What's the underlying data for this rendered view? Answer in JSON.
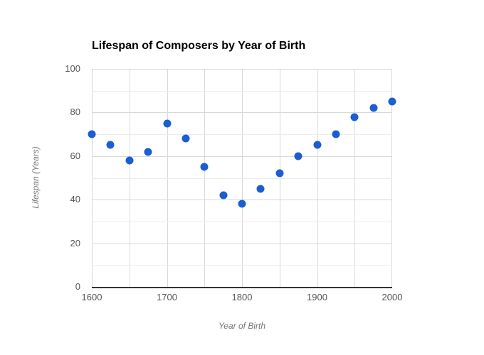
{
  "chart_data": {
    "type": "scatter",
    "title": "Lifespan of Composers by Year of Birth",
    "xlabel": "Year of Birth",
    "ylabel": "Lifespan (Years)",
    "xlim": [
      1600,
      2000
    ],
    "ylim": [
      0,
      100
    ],
    "x_ticks": [
      1600,
      1700,
      1800,
      1900,
      2000
    ],
    "y_ticks": [
      0,
      20,
      40,
      60,
      80,
      100
    ],
    "grid": {
      "x_step": 50,
      "y_minor_step": 10,
      "y_major_step": 20
    },
    "legend": "none",
    "points": [
      {
        "x": 1600,
        "y": 70
      },
      {
        "x": 1625,
        "y": 65
      },
      {
        "x": 1650,
        "y": 58
      },
      {
        "x": 1675,
        "y": 62
      },
      {
        "x": 1700,
        "y": 75
      },
      {
        "x": 1725,
        "y": 68
      },
      {
        "x": 1750,
        "y": 55
      },
      {
        "x": 1775,
        "y": 42
      },
      {
        "x": 1800,
        "y": 38
      },
      {
        "x": 1825,
        "y": 45
      },
      {
        "x": 1850,
        "y": 52
      },
      {
        "x": 1875,
        "y": 60
      },
      {
        "x": 1900,
        "y": 65
      },
      {
        "x": 1925,
        "y": 70
      },
      {
        "x": 1950,
        "y": 78
      },
      {
        "x": 1975,
        "y": 82
      },
      {
        "x": 2000,
        "y": 85
      }
    ],
    "colors": {
      "point": "#1a5ed1",
      "grid_major": "#d9d9d9",
      "grid_minor": "#ececec",
      "axis_line": "#333333",
      "tick_label": "#555555",
      "axis_title": "#757575",
      "title": "#000000",
      "background": "#ffffff"
    }
  }
}
